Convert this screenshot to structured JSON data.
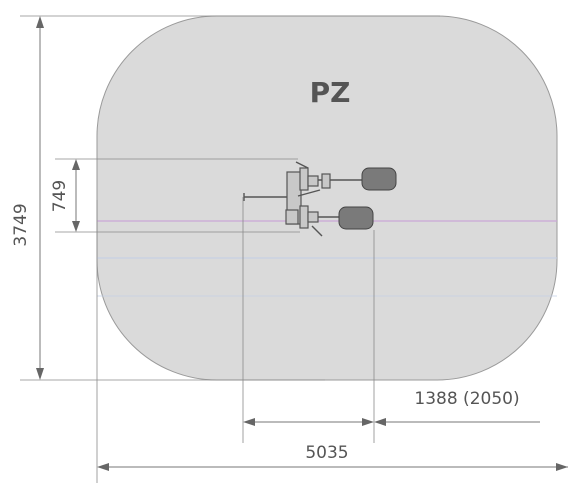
{
  "zone": {
    "label": "PZ"
  },
  "dimensions": {
    "height_total": "3749",
    "height_equipment": "749",
    "width_equipment": "1388 (2050)",
    "width_inner": "5035"
  },
  "colors": {
    "zone_fill": "#dadada",
    "zone_stroke": "#9a9a9a",
    "axis_line": "#c9a8d8",
    "axis_line_blue": "#b8c8e8"
  }
}
